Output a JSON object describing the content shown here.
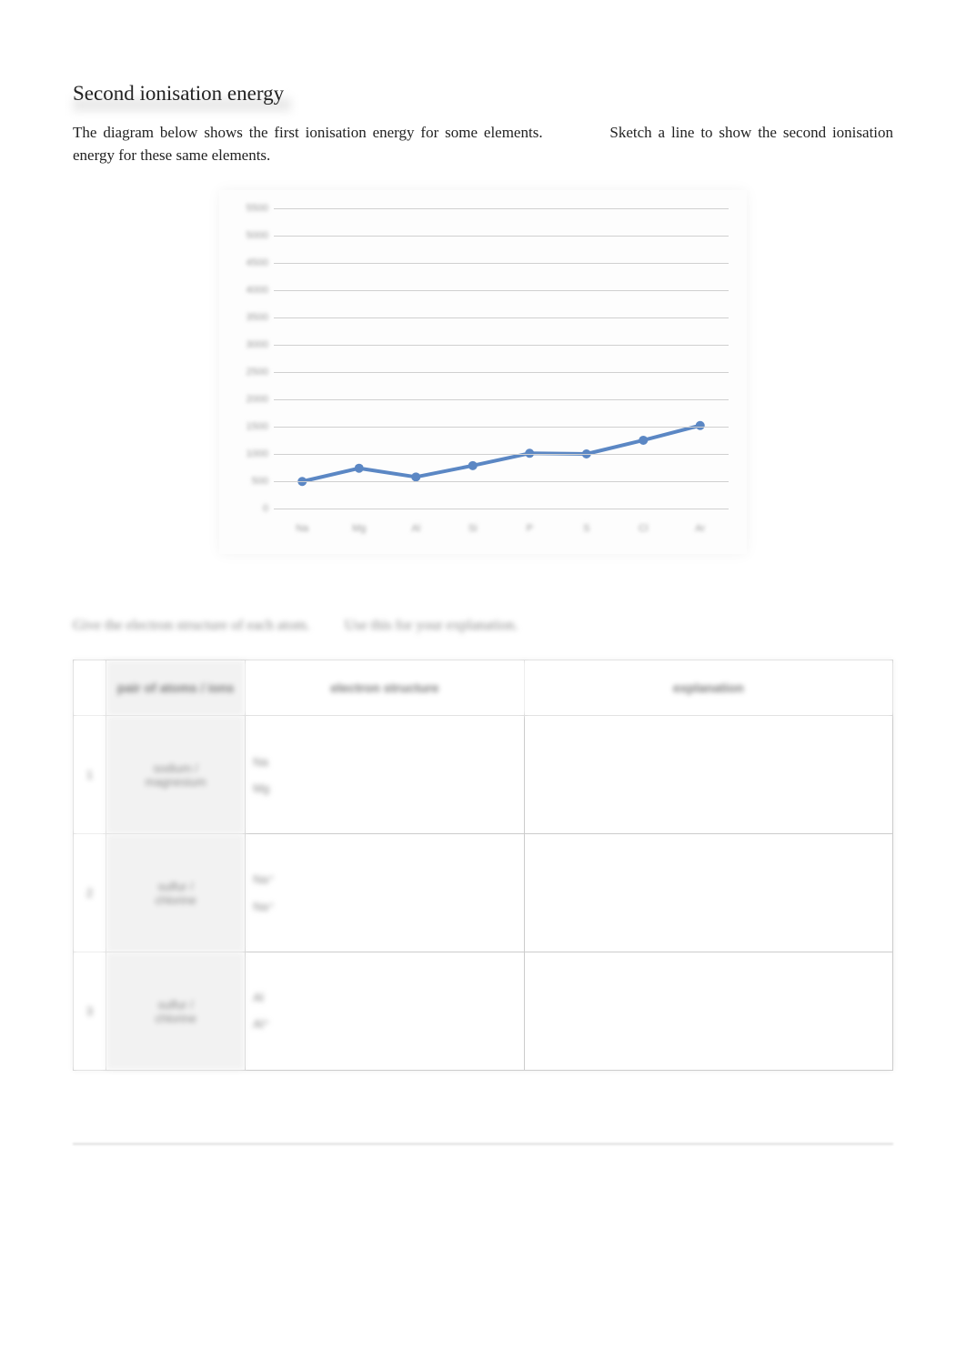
{
  "title": "Second ionisation energy",
  "instructions_a": "The diagram below shows the first ionisation energy for some elements.",
  "instructions_b": "Sketch a line to show the second ionisation energy for these same elements.",
  "chart": {
    "type": "line",
    "background_color": "#fdfdfd",
    "grid_color": "#d0d0d0",
    "line_color": "#5b87c4",
    "marker_color": "#5b87c4",
    "line_width": 4,
    "marker_radius": 5,
    "ylim": [
      0,
      5500
    ],
    "ytick_step": 500,
    "yticks": [
      0,
      500,
      1000,
      1500,
      2000,
      2500,
      3000,
      3500,
      4000,
      4500,
      5000,
      5500
    ],
    "categories": [
      "Na",
      "Mg",
      "Al",
      "Si",
      "P",
      "S",
      "Cl",
      "Ar"
    ],
    "values": [
      496,
      738,
      578,
      786,
      1012,
      1000,
      1251,
      1521
    ],
    "tick_fontsize": 11,
    "tick_color": "#999999"
  },
  "subheading_a": "Give the electron structure of each atom.",
  "subheading_b": "Use this for your explanation.",
  "table": {
    "headers": {
      "pair": "pair of\\natoms / ions",
      "electron": "electron structure",
      "explanation": "explanation"
    },
    "rows": [
      {
        "num": "1",
        "pair": "sodium /\\nmagnesium",
        "e1": "Na",
        "e2": "Mg",
        "expl": ""
      },
      {
        "num": "2",
        "pair": "sulfur /\\nchlorine",
        "e1": "Na⁺",
        "e2": "Na⁺",
        "expl": ""
      },
      {
        "num": "3",
        "pair": "sulfur /\\nchlorine",
        "e1": "Al",
        "e2": "Al⁺",
        "expl": ""
      }
    ]
  }
}
